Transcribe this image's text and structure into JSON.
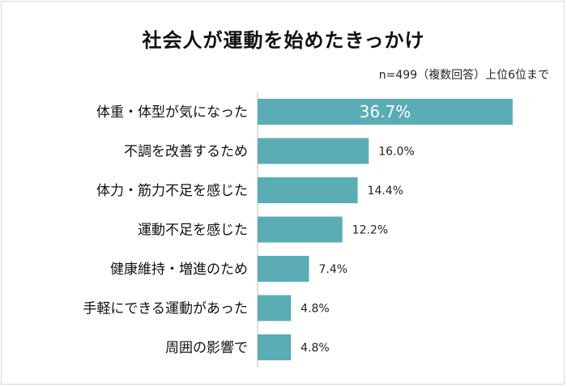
{
  "chart_data": {
    "type": "bar",
    "orientation": "horizontal",
    "title": "社会人が運動を始めたきっかけ",
    "note": "n=499（複数回答）上位6位まで",
    "categories": [
      "体重・体型が気になった",
      "不調を改善するため",
      "体力・筋力不足を感じた",
      "運動不足を感じた",
      "健康維持・増進のため",
      "手軽にできる運動があった",
      "周囲の影響で"
    ],
    "values": [
      36.7,
      16.0,
      14.4,
      12.2,
      7.4,
      4.8,
      4.8
    ],
    "value_labels": [
      "36.7%",
      "16.0%",
      "14.4%",
      "12.2%",
      "7.4%",
      "4.8%",
      "4.8%"
    ],
    "bar_color": "#5aadb4",
    "highlight_label_color": "#ffffff",
    "label_color": "#222222",
    "grid": false,
    "legend": "none"
  }
}
